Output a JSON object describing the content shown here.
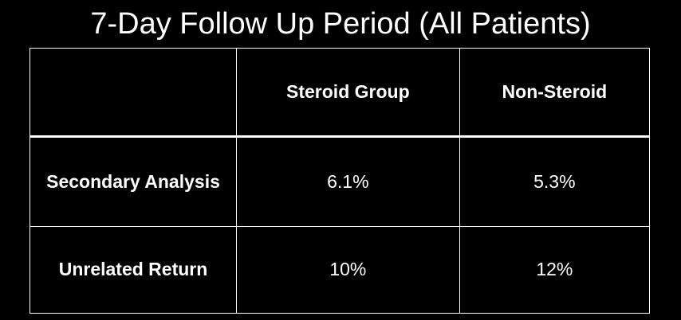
{
  "title": "7-Day Follow Up Period (All Patients)",
  "table": {
    "header": [
      "",
      "Steroid Group",
      "Non-Steroid"
    ],
    "rows": [
      [
        "Secondary Analysis",
        "6.1%",
        "5.3%"
      ],
      [
        "Unrelated Return",
        "10%",
        "12%"
      ]
    ]
  }
}
